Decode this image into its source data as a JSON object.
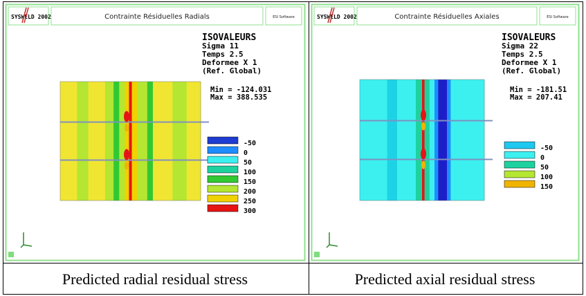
{
  "panels": [
    {
      "header": {
        "logo": "SYSWELD 2002",
        "title": "Contrainte Résiduelles Radials",
        "vendor": "ESI Software"
      },
      "info": [
        "ISOVALEURS",
        "Sigma 11",
        "Temps 2.5",
        "Deformee X 1",
        "(Ref. Global)"
      ],
      "range": [
        "Min = -124.031",
        "Max = 388.535"
      ],
      "legend": [
        {
          "label": "-50",
          "color": "#1e3cd2"
        },
        {
          "label": "0",
          "color": "#1e8cff"
        },
        {
          "label": "50",
          "color": "#3cf0f0"
        },
        {
          "label": "100",
          "color": "#1ed2a0"
        },
        {
          "label": "150",
          "color": "#32c832"
        },
        {
          "label": "200",
          "color": "#b4e632"
        },
        {
          "label": "250",
          "color": "#f0d200"
        },
        {
          "label": "300",
          "color": "#e61414"
        }
      ],
      "caption": "Predicted radial residual stress"
    },
    {
      "header": {
        "logo": "SYSWELD 2002",
        "title": "Contrainte Résiduelles Axiales",
        "vendor": "ESI Software"
      },
      "info": [
        "ISOVALEURS",
        "Sigma 22",
        "Temps 2.5",
        "Deformee X 1",
        "(Ref. Global)"
      ],
      "range": [
        "Min = -181.51",
        "Max = 207.41"
      ],
      "legend": [
        {
          "label": "-50",
          "color": "#1ec8f0"
        },
        {
          "label": "0",
          "color": "#3cf0f0"
        },
        {
          "label": "50",
          "color": "#1ed2a0"
        },
        {
          "label": "100",
          "color": "#b4e632"
        },
        {
          "label": "150",
          "color": "#f0b400"
        }
      ],
      "caption": "Predicted axial residual stress"
    }
  ]
}
